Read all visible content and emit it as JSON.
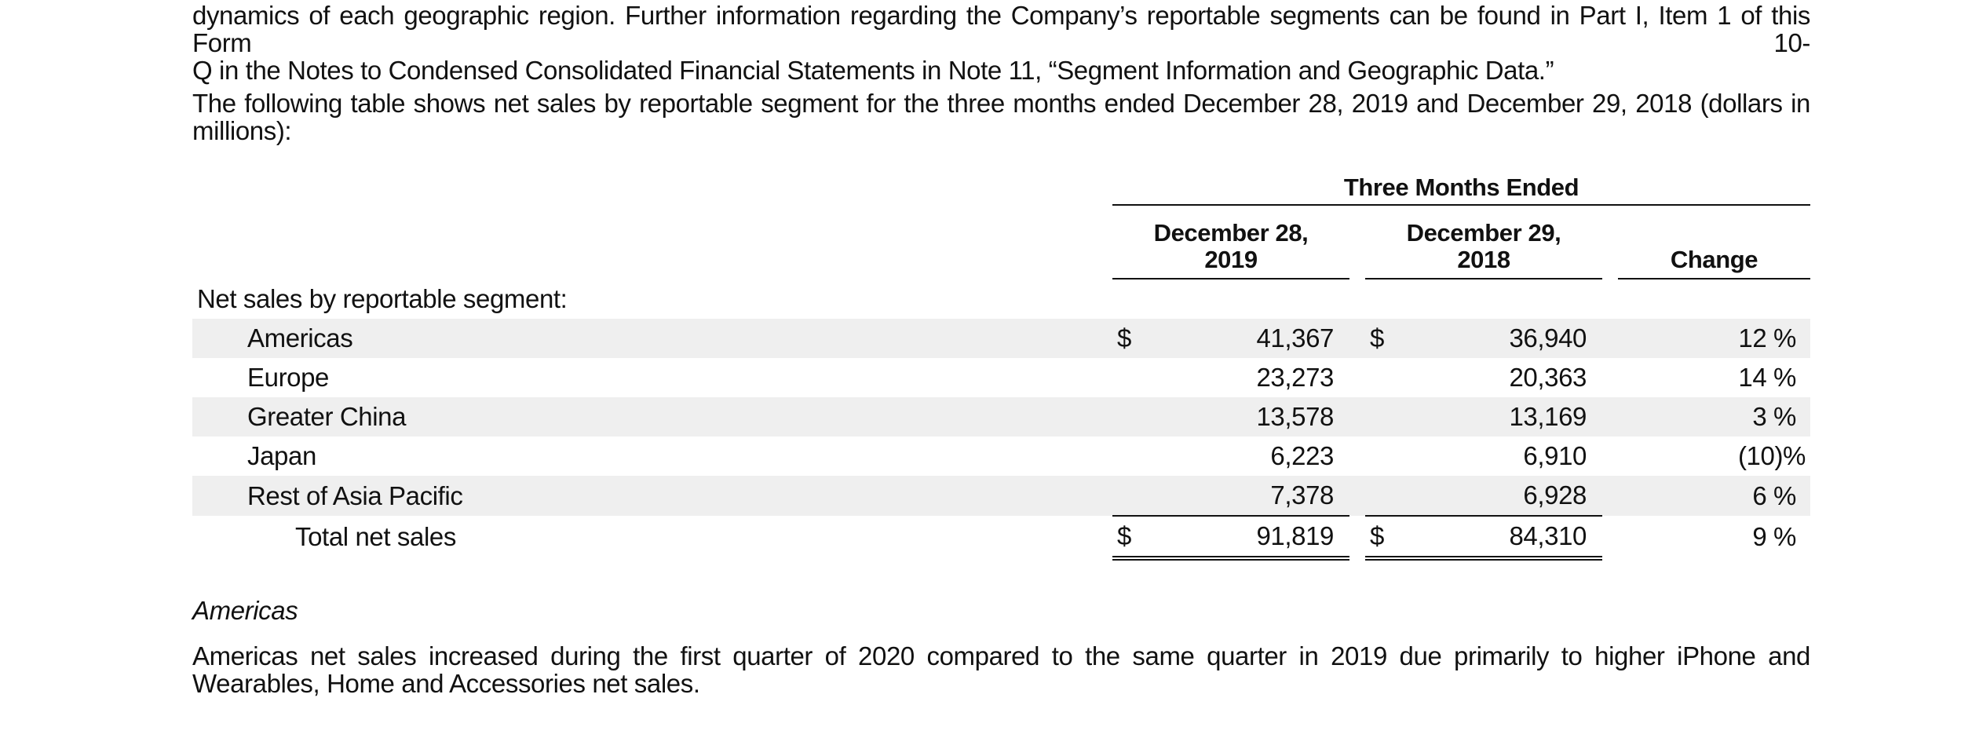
{
  "paragraphs": {
    "top_line1": "dynamics of each geographic region. Further information regarding the Company’s reportable segments can be found in Part I, Item 1 of this Form 10-",
    "top_line2": "Q in the Notes to Condensed Consolidated Financial Statements in Note 11, “Segment Information and Geographic Data.”",
    "intro": "The following table shows net sales by reportable segment for the three months ended December 28, 2019 and December 29, 2018 (dollars in millions):",
    "americas_heading": "Americas",
    "americas_body": "Americas net sales increased during the first quarter of 2020 compared to the same quarter in 2019 due primarily to higher iPhone and Wearables, Home and Accessories net sales."
  },
  "table": {
    "group_header": "Three Months Ended",
    "col1_header": "December 28, 2019",
    "col2_header": "December 29, 2018",
    "col3_header": "Change",
    "section_label": "Net sales by reportable segment:",
    "currency_symbol": "$",
    "rows": [
      {
        "label": "Americas",
        "v2019": "41,367",
        "v2018": "36,940",
        "change": "12 %"
      },
      {
        "label": "Europe",
        "v2019": "23,273",
        "v2018": "20,363",
        "change": "14 %"
      },
      {
        "label": "Greater China",
        "v2019": "13,578",
        "v2018": "13,169",
        "change": "3 %"
      },
      {
        "label": "Japan",
        "v2019": "6,223",
        "v2018": "6,910",
        "change": "(10)%"
      },
      {
        "label": "Rest of Asia Pacific",
        "v2019": "7,378",
        "v2018": "6,928",
        "change": "6 %"
      }
    ],
    "total": {
      "label": "Total net sales",
      "v2019": "91,819",
      "v2018": "84,310",
      "change": "9 %"
    }
  }
}
